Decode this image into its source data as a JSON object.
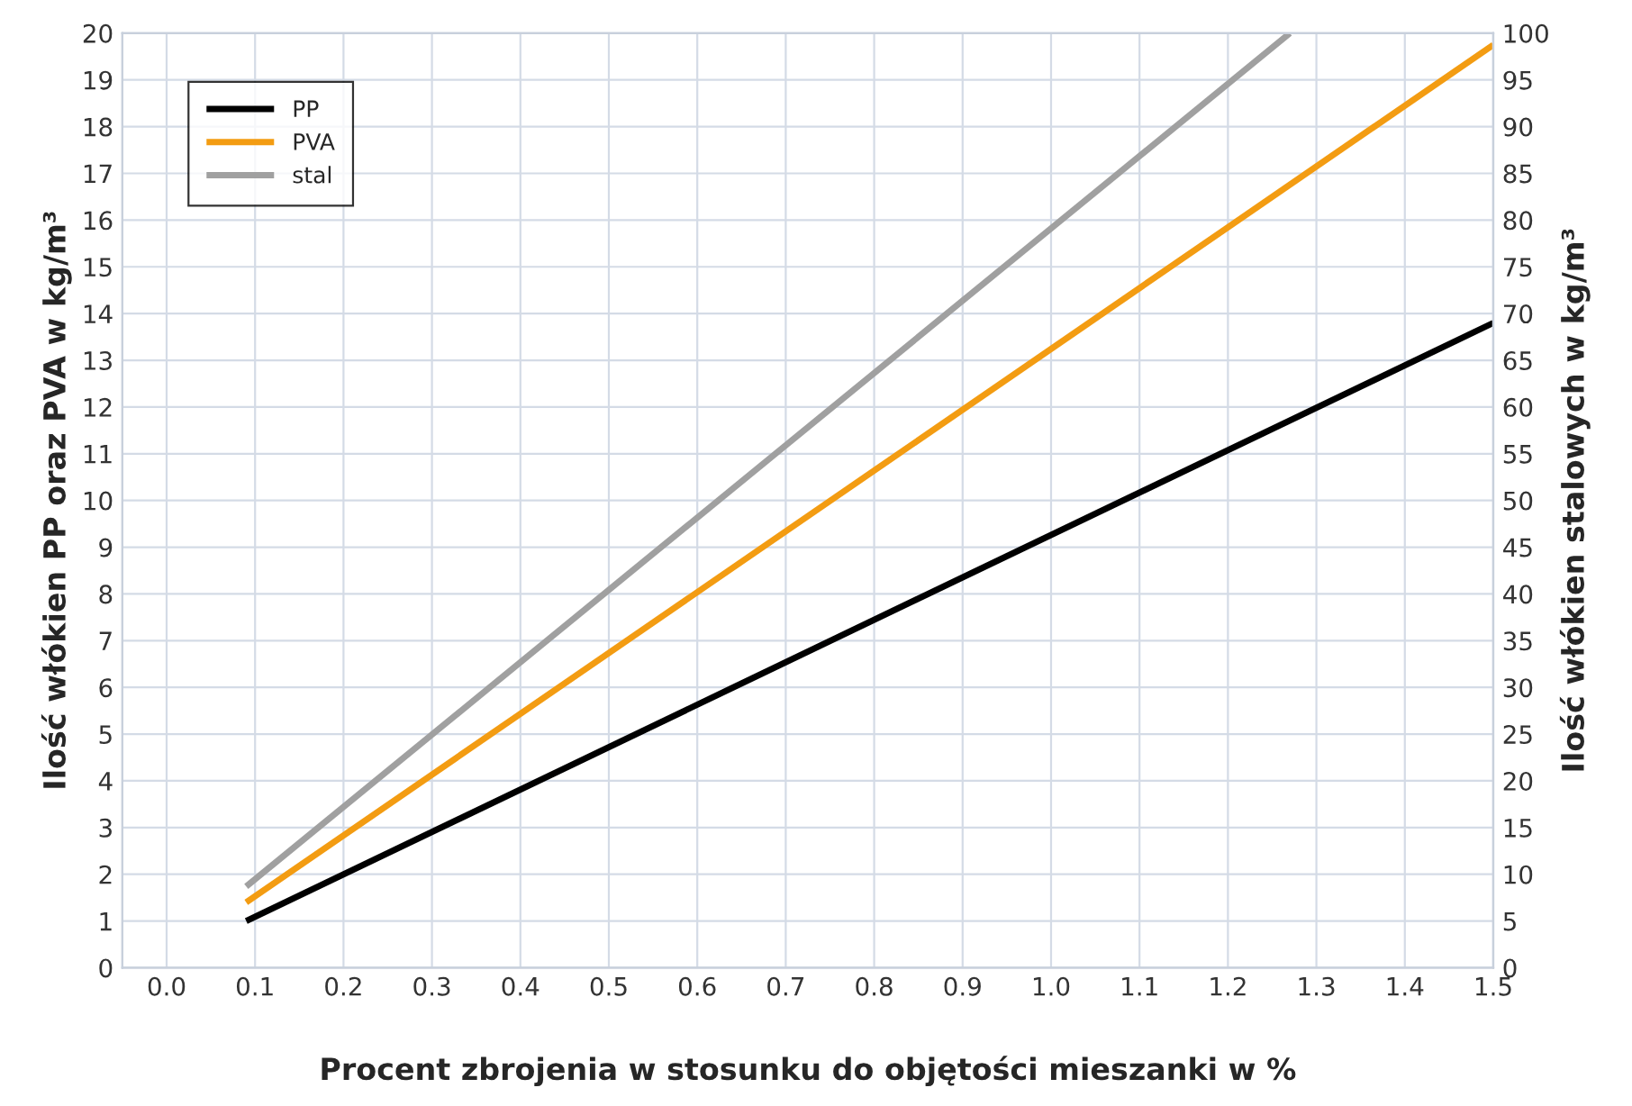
{
  "chart_data": {
    "type": "line",
    "xlabel": "Procent zbrojenia w stosunku do objętości mieszanki w %",
    "ylabel": "Ilość włókien PP oraz PVA w kg/m³",
    "y2label": "Ilość włókien stalowych w kg/m³",
    "series": [
      {
        "name": "PP",
        "color": "#000000",
        "x": [
          0.09,
          1.5
        ],
        "values": [
          1.0,
          13.8
        ]
      },
      {
        "name": "PVA",
        "color": "#f39c12",
        "x": [
          0.09,
          1.5
        ],
        "values": [
          1.4,
          19.75
        ]
      },
      {
        "name": "stal",
        "color": "#a0a0a0",
        "axis": "y2",
        "x": [
          0.09,
          1.27
        ],
        "values": [
          8.7,
          100
        ]
      }
    ],
    "xlim": [
      -0.05,
      1.5
    ],
    "xticks": [
      {
        "value": 0,
        "label": "0.0"
      },
      0.1,
      0.2,
      0.3,
      0.4,
      0.5,
      0.6,
      0.7,
      0.8,
      0.9,
      {
        "value": 1,
        "label": "1.0"
      },
      1.1,
      1.2,
      1.3,
      1.4,
      1.5
    ],
    "ylim": [
      0,
      20
    ],
    "yticks": [
      0,
      1,
      2,
      3,
      4,
      5,
      6,
      7,
      8,
      9,
      10,
      11,
      12,
      13,
      14,
      15,
      16,
      17,
      18,
      19,
      20
    ],
    "y2lim": [
      0,
      100
    ],
    "y2ticks": [
      0,
      5,
      10,
      15,
      20,
      25,
      30,
      35,
      40,
      45,
      50,
      55,
      60,
      65,
      70,
      75,
      80,
      85,
      90,
      95,
      100
    ],
    "grid": true,
    "legend": "top left"
  }
}
